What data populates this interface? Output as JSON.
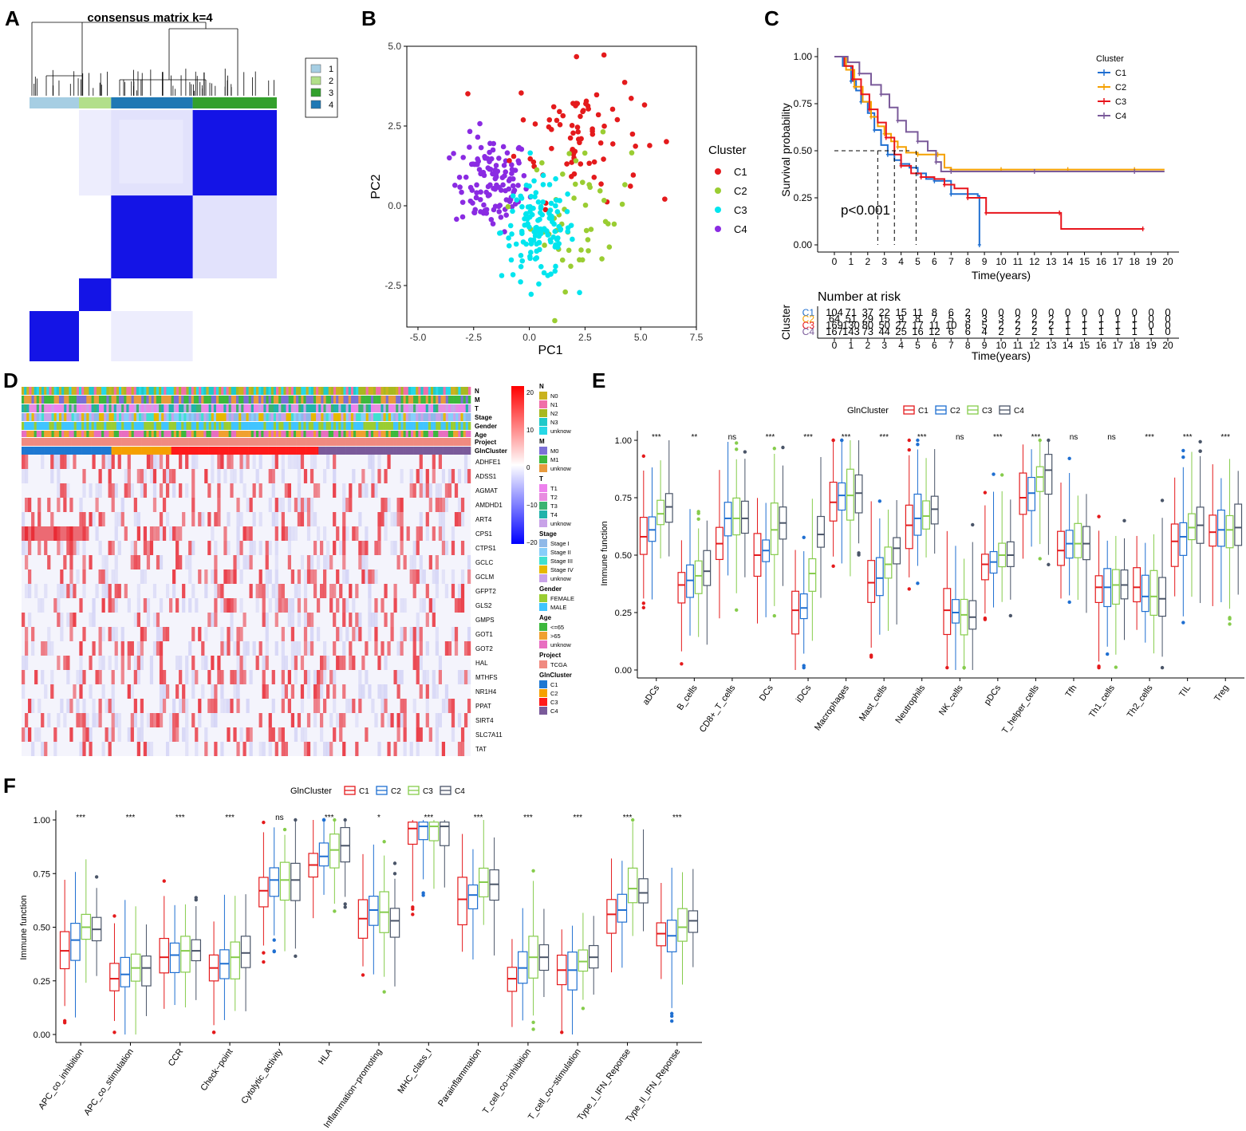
{
  "panels": {
    "A": "A",
    "B": "B",
    "C": "C",
    "D": "D",
    "E": "E",
    "F": "F"
  },
  "colors": {
    "c1": "#e41a1c",
    "c2": "#1f6fd1",
    "c3": "#86cc4c",
    "c4": "#4a5568",
    "pca_c1": "#e41a1c",
    "pca_c2": "#9acd32",
    "pca_c3": "#00e5ee",
    "pca_c4": "#8a2be2",
    "cons_blue": "#1414e6"
  },
  "chart_data": [
    {
      "id": "A",
      "type": "heatmap",
      "title": "consensus matrix k=4",
      "legend": [
        "1",
        "2",
        "3",
        "4"
      ],
      "legend_colors": [
        "#a6cee3",
        "#b2df8a",
        "#33a02c",
        "#1f78b4"
      ],
      "column_order_clusters": [
        "1",
        "2",
        "4",
        "3"
      ],
      "block_fractions": [
        0.2,
        0.13,
        0.33,
        0.34
      ]
    },
    {
      "id": "B",
      "type": "scatter",
      "xlabel": "PC1",
      "ylabel": "PC2",
      "xlim": [
        -5.5,
        7.5
      ],
      "ylim": [
        -3.8,
        5.0
      ],
      "xticks": [
        "-5.0",
        "-2.5",
        "0.0",
        "2.5",
        "5.0",
        "7.5"
      ],
      "yticks": [
        "5.0",
        "2.5",
        "0.0",
        "-2.5"
      ],
      "legend_title": "Cluster",
      "series": [
        {
          "name": "C1",
          "n": 104,
          "center": [
            2.2,
            2.3
          ],
          "spread": [
            1.9,
            1.4
          ]
        },
        {
          "name": "C2",
          "n": 64,
          "center": [
            2.3,
            -0.3
          ],
          "spread": [
            1.5,
            1.5
          ]
        },
        {
          "name": "C3",
          "n": 169,
          "center": [
            0.4,
            -0.8
          ],
          "spread": [
            1.1,
            1.0
          ]
        },
        {
          "name": "C4",
          "n": 167,
          "center": [
            -1.7,
            0.7
          ],
          "spread": [
            1.1,
            1.0
          ]
        }
      ]
    },
    {
      "id": "C",
      "type": "line",
      "xlabel": "Time(years)",
      "ylabel": "Survival probability",
      "xlim": [
        0,
        20
      ],
      "ylim": [
        0,
        1
      ],
      "xticks": [
        "0",
        "1",
        "2",
        "3",
        "4",
        "5",
        "6",
        "7",
        "8",
        "9",
        "10",
        "11",
        "12",
        "13",
        "14",
        "15",
        "16",
        "17",
        "18",
        "19",
        "20"
      ],
      "yticks": [
        "1.00",
        "0.75",
        "0.50",
        "0.25",
        "0.00"
      ],
      "pvalue": "p<0.001",
      "legend_title": "Cluster",
      "series": [
        {
          "name": "C1",
          "x": [
            0,
            0.5,
            1,
            1.3,
            1.6,
            2,
            2.4,
            2.8,
            3.2,
            3.6,
            4,
            4.5,
            5,
            5.5,
            6,
            6.5,
            7,
            7.5,
            8,
            8.6,
            8.7
          ],
          "y": [
            1,
            0.95,
            0.87,
            0.82,
            0.76,
            0.7,
            0.61,
            0.53,
            0.48,
            0.45,
            0.43,
            0.41,
            0.38,
            0.35,
            0.34,
            0.34,
            0.27,
            0.27,
            0.27,
            0.26,
            0
          ]
        },
        {
          "name": "C2",
          "x": [
            0,
            0.7,
            1.2,
            1.7,
            2.2,
            2.6,
            3,
            3.4,
            3.8,
            4.3,
            5,
            5.6,
            6.2,
            6.6,
            7,
            8,
            10,
            12,
            14,
            16,
            18,
            19.8
          ],
          "y": [
            1,
            0.93,
            0.84,
            0.76,
            0.68,
            0.63,
            0.59,
            0.55,
            0.52,
            0.49,
            0.48,
            0.48,
            0.48,
            0.41,
            0.4,
            0.4,
            0.4,
            0.4,
            0.4,
            0.4,
            0.4,
            0.4
          ]
        },
        {
          "name": "C3",
          "x": [
            0,
            0.6,
            1.1,
            1.6,
            2.1,
            2.6,
            3.1,
            3.6,
            4,
            4.6,
            5.2,
            6,
            6.6,
            7.2,
            8,
            9,
            9.1,
            12,
            13.5,
            13.6,
            18.5
          ],
          "y": [
            1,
            0.95,
            0.88,
            0.8,
            0.72,
            0.65,
            0.57,
            0.48,
            0.42,
            0.38,
            0.36,
            0.35,
            0.32,
            0.3,
            0.25,
            0.25,
            0.17,
            0.17,
            0.17,
            0.085,
            0.085
          ]
        },
        {
          "name": "C4",
          "x": [
            0,
            0.8,
            1.5,
            2.2,
            2.8,
            3.3,
            3.8,
            4.3,
            5,
            5.6,
            6.1,
            6.4,
            7,
            9,
            12,
            15,
            18,
            19.8
          ],
          "y": [
            1,
            0.97,
            0.91,
            0.85,
            0.8,
            0.73,
            0.66,
            0.6,
            0.55,
            0.5,
            0.44,
            0.39,
            0.39,
            0.39,
            0.39,
            0.39,
            0.39,
            0.39
          ]
        }
      ],
      "risk_table": {
        "title": "Number at risk",
        "ylabel": "Cluster",
        "rows": [
          {
            "name": "C1",
            "values": [
              "104",
              "71",
              "37",
              "22",
              "15",
              "11",
              "8",
              "6",
              "2",
              "0",
              "0",
              "0",
              "0",
              "0",
              "0",
              "0",
              "0",
              "0",
              "0",
              "0",
              "0"
            ]
          },
          {
            "name": "C2",
            "values": [
              "64",
              "51",
              "29",
              "15",
              "9",
              "8",
              "7",
              "5",
              "3",
              "3",
              "3",
              "2",
              "2",
              "2",
              "1",
              "1",
              "1",
              "1",
              "1",
              "0",
              "0"
            ]
          },
          {
            "name": "C3",
            "values": [
              "169",
              "130",
              "80",
              "50",
              "27",
              "17",
              "11",
              "10",
              "6",
              "5",
              "2",
              "2",
              "2",
              "2",
              "1",
              "1",
              "1",
              "1",
              "1",
              "0",
              "0"
            ]
          },
          {
            "name": "C4",
            "values": [
              "167",
              "143",
              "73",
              "44",
              "25",
              "16",
              "12",
              "6",
              "6",
              "4",
              "2",
              "2",
              "2",
              "1",
              "1",
              "1",
              "1",
              "1",
              "1",
              "1",
              "0"
            ]
          }
        ]
      }
    },
    {
      "id": "D",
      "type": "heatmap",
      "annotation_rows": [
        "N",
        "M",
        "T",
        "Stage",
        "Gender",
        "Age",
        "Project",
        "GlnCluster"
      ],
      "genes": [
        "ADHFE1",
        "ADSS1",
        "AGMAT",
        "AMDHD1",
        "ART4",
        "CPS1",
        "CTPS1",
        "GCLC",
        "GCLM",
        "GFPT2",
        "GLS2",
        "GMPS",
        "GOT1",
        "GOT2",
        "HAL",
        "MTHFS",
        "NR1H4",
        "PPAT",
        "SIRT4",
        "SLC7A11",
        "TAT"
      ],
      "colorbar_ticks": [
        "20",
        "10",
        "0",
        "−10",
        "−20"
      ],
      "cluster_fractions": [
        0.2,
        0.13,
        0.33,
        0.34
      ],
      "legend_groups": [
        {
          "title": "N",
          "items": [
            "N0",
            "N1",
            "N2",
            "N3",
            "unknow"
          ],
          "colors": [
            "#c9b21e",
            "#f06ea8",
            "#a8b820",
            "#1ec9c9",
            "#26d8e6"
          ]
        },
        {
          "title": "M",
          "items": [
            "M0",
            "M1",
            "unknow"
          ],
          "colors": [
            "#7b6fd6",
            "#3db83d",
            "#e89a3c"
          ]
        },
        {
          "title": "T",
          "items": [
            "T1",
            "T2",
            "T3",
            "T4",
            "unknow"
          ],
          "colors": [
            "#ee82ee",
            "#e88ce0",
            "#3cb371",
            "#20b2aa",
            "#c8a2e8"
          ]
        },
        {
          "title": "Stage",
          "items": [
            "Stage I",
            "Stage II",
            "Stage III",
            "Stage IV",
            "unknow"
          ],
          "colors": [
            "#8fb8e8",
            "#87cefa",
            "#40e0d0",
            "#e6b800",
            "#c8a2e8"
          ]
        },
        {
          "title": "Gender",
          "items": [
            "FEMALE",
            "MALE"
          ],
          "colors": [
            "#9acd32",
            "#40c4ff"
          ]
        },
        {
          "title": "Age",
          "items": [
            "<=65",
            ">65",
            "unknow"
          ],
          "colors": [
            "#3db83d",
            "#f0a030",
            "#e86ec0"
          ]
        },
        {
          "title": "Project",
          "items": [
            "TCGA"
          ],
          "colors": [
            "#f08a80"
          ]
        },
        {
          "title": "GlnCluster",
          "items": [
            "C1",
            "C2",
            "C3",
            "C4"
          ],
          "colors": [
            "#1e78d2",
            "#f5a000",
            "#ff1a1a",
            "#7a5a9a"
          ]
        }
      ]
    },
    {
      "id": "E",
      "type": "box",
      "ylabel": "Immune function",
      "legend_title": "GlnCluster",
      "legend_items": [
        "C1",
        "C2",
        "C3",
        "C4"
      ],
      "ylim": [
        0,
        1
      ],
      "yticks": [
        "0.00",
        "0.25",
        "0.50",
        "0.75",
        "1.00"
      ],
      "categories": [
        "aDCs",
        "B_cells",
        "CD8+_T_cells",
        "DCs",
        "iDCs",
        "Macrophages",
        "Mast_cells",
        "Neutrophils",
        "NK_cells",
        "pDCs",
        "T_helper_cells",
        "Tfh",
        "Th1_cells",
        "Th2_cells",
        "TIL",
        "Treg"
      ],
      "significance": [
        "***",
        "**",
        "ns",
        "***",
        "***",
        "***",
        "***",
        "***",
        "ns",
        "***",
        "***",
        "ns",
        "ns",
        "***",
        "***",
        "***"
      ],
      "medians": [
        [
          0.58,
          0.61,
          0.68,
          0.71
        ],
        [
          0.37,
          0.39,
          0.41,
          0.43
        ],
        [
          0.55,
          0.66,
          0.66,
          0.66
        ],
        [
          0.5,
          0.52,
          0.61,
          0.64
        ],
        [
          0.26,
          0.27,
          0.42,
          0.59
        ],
        [
          0.73,
          0.76,
          0.76,
          0.77
        ],
        [
          0.38,
          0.4,
          0.46,
          0.53
        ],
        [
          0.63,
          0.66,
          0.67,
          0.7
        ],
        [
          0.26,
          0.25,
          0.24,
          0.23
        ],
        [
          0.46,
          0.47,
          0.5,
          0.5
        ],
        [
          0.75,
          0.77,
          0.84,
          0.87
        ],
        [
          0.52,
          0.55,
          0.55,
          0.55
        ],
        [
          0.36,
          0.36,
          0.37,
          0.37
        ],
        [
          0.36,
          0.32,
          0.32,
          0.31
        ],
        [
          0.56,
          0.58,
          0.62,
          0.63
        ],
        [
          0.6,
          0.61,
          0.61,
          0.62
        ]
      ]
    },
    {
      "id": "F",
      "type": "box",
      "ylabel": "Immune function",
      "legend_title": "GlnCluster",
      "legend_items": [
        "C1",
        "C2",
        "C3",
        "C4"
      ],
      "ylim": [
        0,
        1
      ],
      "yticks": [
        "0.00",
        "0.25",
        "0.50",
        "0.75",
        "1.00"
      ],
      "categories": [
        "APC_co_inhibition",
        "APC_co_stimulation",
        "CCR",
        "Check−point",
        "Cytolytic_activity",
        "HLA",
        "Inflammation−promoting",
        "MHC_class_I",
        "Parainflammation",
        "T_cell_co−inhibition",
        "T_cell_co−stimulation",
        "Type_I_IFN_Reponse",
        "Type_II_IFN_Reponse"
      ],
      "significance": [
        "***",
        "***",
        "***",
        "***",
        "ns",
        "***",
        "*",
        "***",
        "***",
        "***",
        "***",
        "***",
        "***"
      ],
      "medians": [
        [
          0.39,
          0.44,
          0.5,
          0.49
        ],
        [
          0.26,
          0.28,
          0.31,
          0.31
        ],
        [
          0.36,
          0.37,
          0.39,
          0.39
        ],
        [
          0.31,
          0.33,
          0.36,
          0.38
        ],
        [
          0.67,
          0.72,
          0.72,
          0.72
        ],
        [
          0.79,
          0.83,
          0.86,
          0.88
        ],
        [
          0.54,
          0.58,
          0.57,
          0.53
        ],
        [
          0.96,
          0.97,
          0.97,
          0.97
        ],
        [
          0.63,
          0.65,
          0.71,
          0.7
        ],
        [
          0.26,
          0.31,
          0.36,
          0.36
        ],
        [
          0.3,
          0.3,
          0.34,
          0.36
        ],
        [
          0.56,
          0.58,
          0.68,
          0.66
        ],
        [
          0.47,
          0.46,
          0.5,
          0.53
        ]
      ]
    }
  ]
}
